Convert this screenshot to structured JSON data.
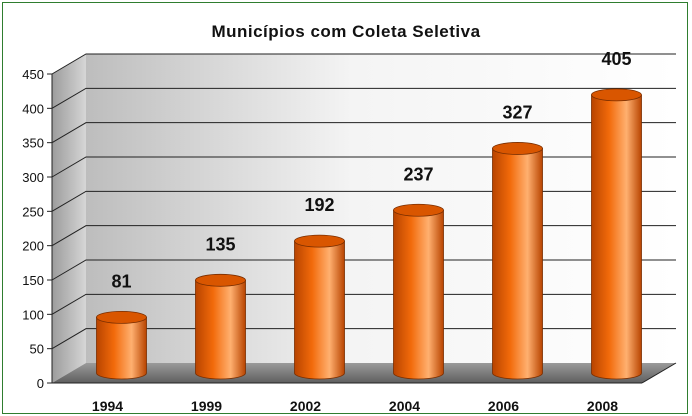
{
  "chart_data": {
    "type": "bar",
    "title": "Municípios com Coleta Seletiva",
    "categories": [
      "1994",
      "1999",
      "2002",
      "2004",
      "2006",
      "2008"
    ],
    "values": [
      81,
      135,
      192,
      237,
      327,
      405
    ],
    "data_labels": [
      "81",
      "135",
      "192",
      "237",
      "327",
      "405"
    ],
    "yticks": [
      "0",
      "50",
      "100",
      "150",
      "200",
      "250",
      "300",
      "350",
      "400",
      "450"
    ],
    "ylim": [
      0,
      450
    ],
    "xlabel": "",
    "ylabel": "",
    "grid": true,
    "style": "3d-cylinder",
    "colors": {
      "bar": "#f26a0a",
      "bar_dark": "#b84400",
      "bar_light": "#ffb070",
      "bar_top": "#d95600",
      "frame": "#2f7d2f",
      "floor": "#7a7a7a",
      "grid": "#222222"
    }
  }
}
